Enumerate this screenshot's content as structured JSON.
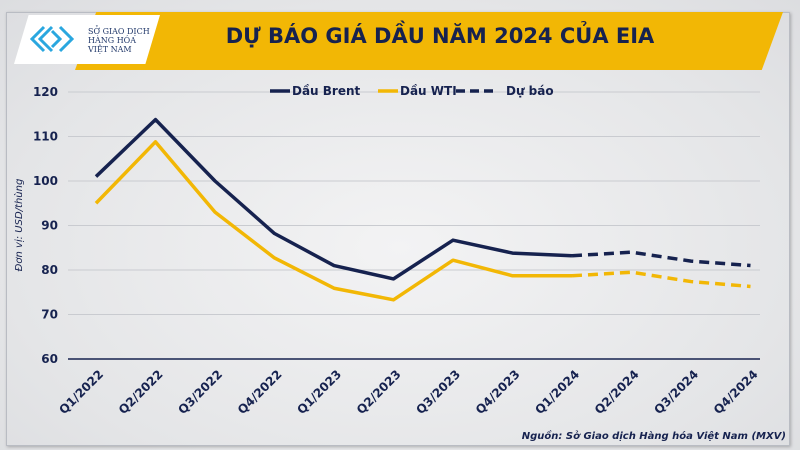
{
  "title": "DỰ BÁO GIÁ DẦU NĂM 2024 CỦA EIA",
  "logo": {
    "lines": [
      "SỞ GIAO DỊCH",
      "HÀNG HÓA",
      "VIỆT NAM"
    ]
  },
  "source": "Nguồn: Sở Giao dịch Hàng hóa Việt Nam (MXV)",
  "colors": {
    "brent": "#16224f",
    "wti": "#f2b705",
    "banner": "#f2b705"
  },
  "chart_data": {
    "type": "line",
    "title": "DỰ BÁO GIÁ DẦU NĂM 2024 CỦA EIA",
    "ylabel": "Đơn vị: USD/thùng",
    "xlabel": "",
    "ylim": [
      60,
      120
    ],
    "yticks": [
      60,
      70,
      80,
      90,
      100,
      110,
      120
    ],
    "grid": true,
    "legend_position": "top-center",
    "categories": [
      "Q1/2022",
      "Q2/2022",
      "Q3/2022",
      "Q4/2022",
      "Q1/2023",
      "Q2/2023",
      "Q3/2023",
      "Q4/2023",
      "Q1/2024",
      "Q2/2024",
      "Q3/2024",
      "Q4/2024"
    ],
    "forecast_start": "Q1/2024",
    "legend": [
      "Dầu Brent",
      "Dầu WTI",
      "Dự báo"
    ],
    "series": [
      {
        "name": "Dầu Brent",
        "color": "#16224f",
        "values": [
          101,
          113.8,
          100,
          88.2,
          81,
          78,
          86.7,
          83.8,
          83.2,
          84,
          82,
          81
        ]
      },
      {
        "name": "Dầu WTI",
        "color": "#f2b705",
        "values": [
          95,
          108.8,
          93,
          82.7,
          75.9,
          73.3,
          82.2,
          78.7,
          78.7,
          79.5,
          77.4,
          76.3
        ]
      }
    ]
  }
}
